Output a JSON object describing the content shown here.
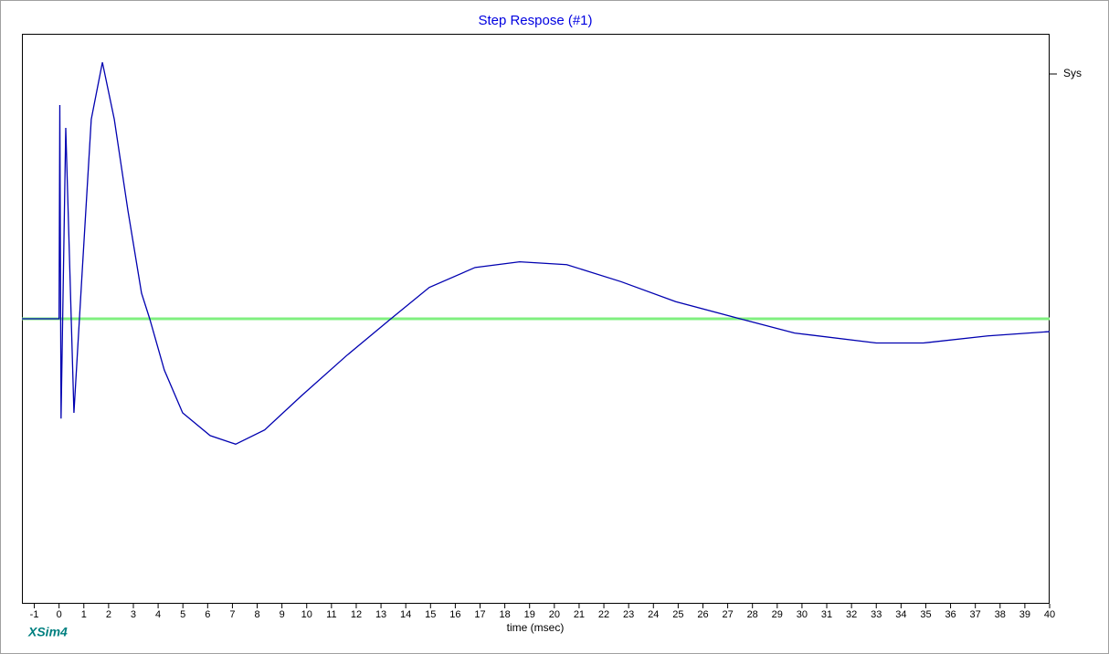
{
  "chart_data": {
    "type": "line",
    "title": "Step Respose (#1)",
    "x_label": "time (msec)",
    "watermark": "XSim4",
    "x": [
      -1.5,
      0,
      0.03,
      0.08,
      0.27,
      0.6,
      0.93,
      1.3,
      1.75,
      2.23,
      2.78,
      3.33,
      3.66,
      4.25,
      4.99,
      6.1,
      7.13,
      8.3,
      9.79,
      11.6,
      13.4,
      14.95,
      16.8,
      18.6,
      20.5,
      22.7,
      24.9,
      27.5,
      29.7,
      33.0,
      34.9,
      37.5,
      40
    ],
    "series": [
      {
        "name": "Sys",
        "color": "#0000b0",
        "values": [
          0,
          0,
          0.75,
          -0.35,
          0.67,
          -0.33,
          0.16,
          0.7,
          0.9,
          0.7,
          0.38,
          0.09,
          0,
          -0.18,
          -0.33,
          -0.41,
          -0.44,
          -0.39,
          -0.27,
          -0.13,
          0,
          0.11,
          0.18,
          0.2,
          0.19,
          0.13,
          0.06,
          0,
          -0.05,
          -0.085,
          -0.085,
          -0.06,
          -0.045
        ]
      }
    ],
    "reference_line": {
      "value": 0,
      "color": "#80f080"
    },
    "xlim": [
      -1.5,
      40
    ],
    "ylim": [
      -1,
      1
    ],
    "xticks": [
      -1,
      0,
      1,
      2,
      3,
      4,
      5,
      6,
      7,
      8,
      9,
      10,
      11,
      12,
      13,
      14,
      15,
      16,
      17,
      18,
      19,
      20,
      21,
      22,
      23,
      24,
      25,
      26,
      27,
      28,
      29,
      30,
      31,
      32,
      33,
      34,
      35,
      36,
      37,
      38,
      39,
      40
    ],
    "legend": "right"
  }
}
